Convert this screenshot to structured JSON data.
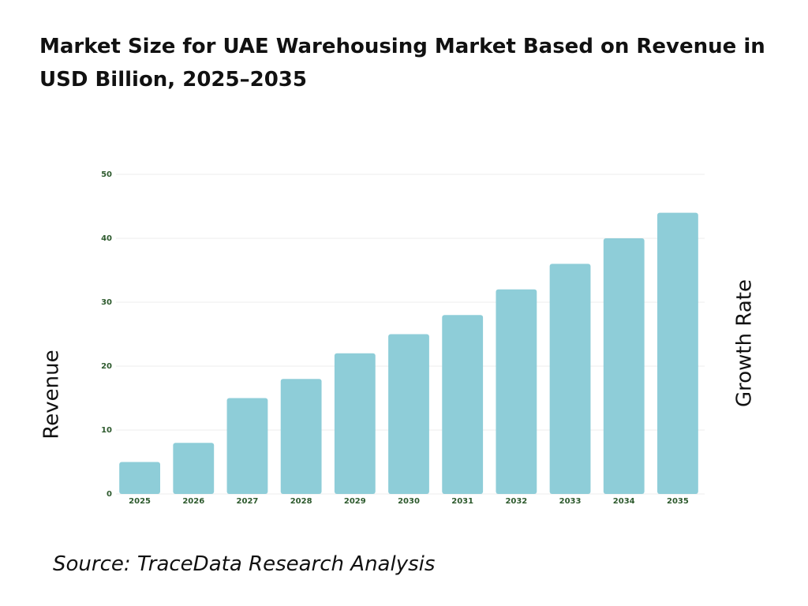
{
  "chart_data": {
    "type": "bar",
    "title": "Market Size for UAE Warehousing Market Based on Revenue in USD Billion, 2025–2035",
    "categories": [
      "2025",
      "2026",
      "2027",
      "2028",
      "2029",
      "2030",
      "2031",
      "2032",
      "2033",
      "2034",
      "2035"
    ],
    "values": [
      5,
      8,
      15,
      18,
      22,
      25,
      28,
      32,
      36,
      40,
      44
    ],
    "color": "#8ecdd8",
    "ylim": [
      0,
      50
    ],
    "yticks": [
      0,
      10,
      20,
      30,
      40,
      50
    ],
    "grid": true,
    "ylabel": "Revenue",
    "y2label": "Growth Rate",
    "source": "Source: TraceData Research Analysis"
  }
}
